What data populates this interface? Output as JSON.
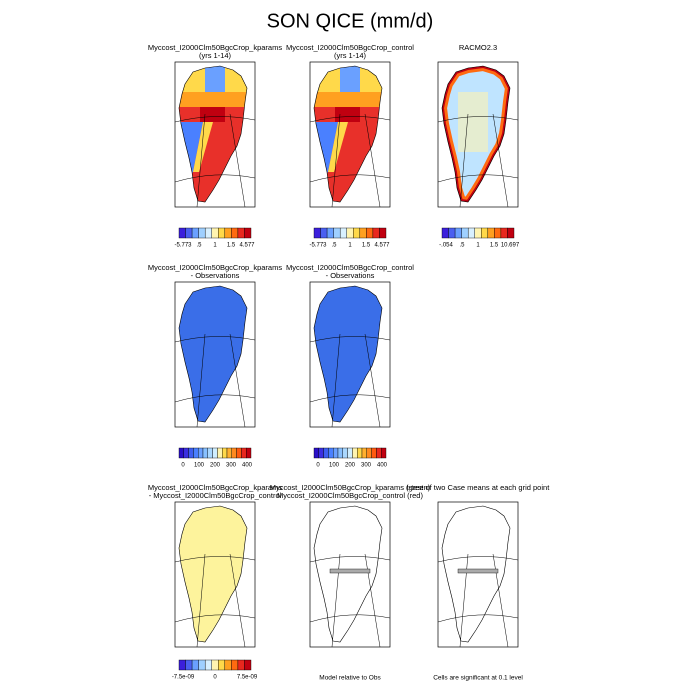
{
  "title": "SON QICE (mm/d)",
  "panels": [
    {
      "title_lines": [
        "Myccost_I2000Clm50BgcCrop_kparams",
        "(yrs 1-14)"
      ],
      "colorbar_labels": [
        "-5.773",
        ".5",
        "1",
        "1.5",
        "4.577"
      ]
    },
    {
      "title_lines": [
        "Myccost_I2000Clm50BgcCrop_control",
        "(yrs 1-14)"
      ],
      "colorbar_labels": [
        "-5.773",
        ".5",
        "1",
        "1.5",
        "4.577"
      ]
    },
    {
      "title_lines": [
        "RACMO2.3"
      ],
      "colorbar_labels": [
        "-.054",
        ".5",
        "1",
        "1.5",
        "10.697"
      ]
    },
    {
      "title_lines": [
        "Myccost_I2000Clm50BgcCrop_kparams",
        "- Observations"
      ],
      "colorbar_labels": [
        "0",
        "100",
        "200",
        "300",
        "400"
      ]
    },
    {
      "title_lines": [
        "Myccost_I2000Clm50BgcCrop_control",
        "- Observations"
      ],
      "colorbar_labels": [
        "0",
        "100",
        "200",
        "300",
        "400"
      ]
    },
    {
      "title_lines": [
        "Myccost_I2000Clm50BgcCrop_kparams",
        "- Myccost_I2000Clm50BgcCrop_control"
      ],
      "colorbar_labels": [
        "-7.5e-09",
        "0",
        "7.5e-09"
      ]
    },
    {
      "title_lines": [
        "Myccost_I2000Clm50BgcCrop_kparams (green)",
        "Myccost_I2000Clm50BgcCrop_control (red)"
      ],
      "footnote": "Model relative to Obs"
    },
    {
      "title_lines": [
        "t-test of two Case means at each grid point"
      ],
      "footnote": "Cells are significant at 0.1 level"
    }
  ]
}
